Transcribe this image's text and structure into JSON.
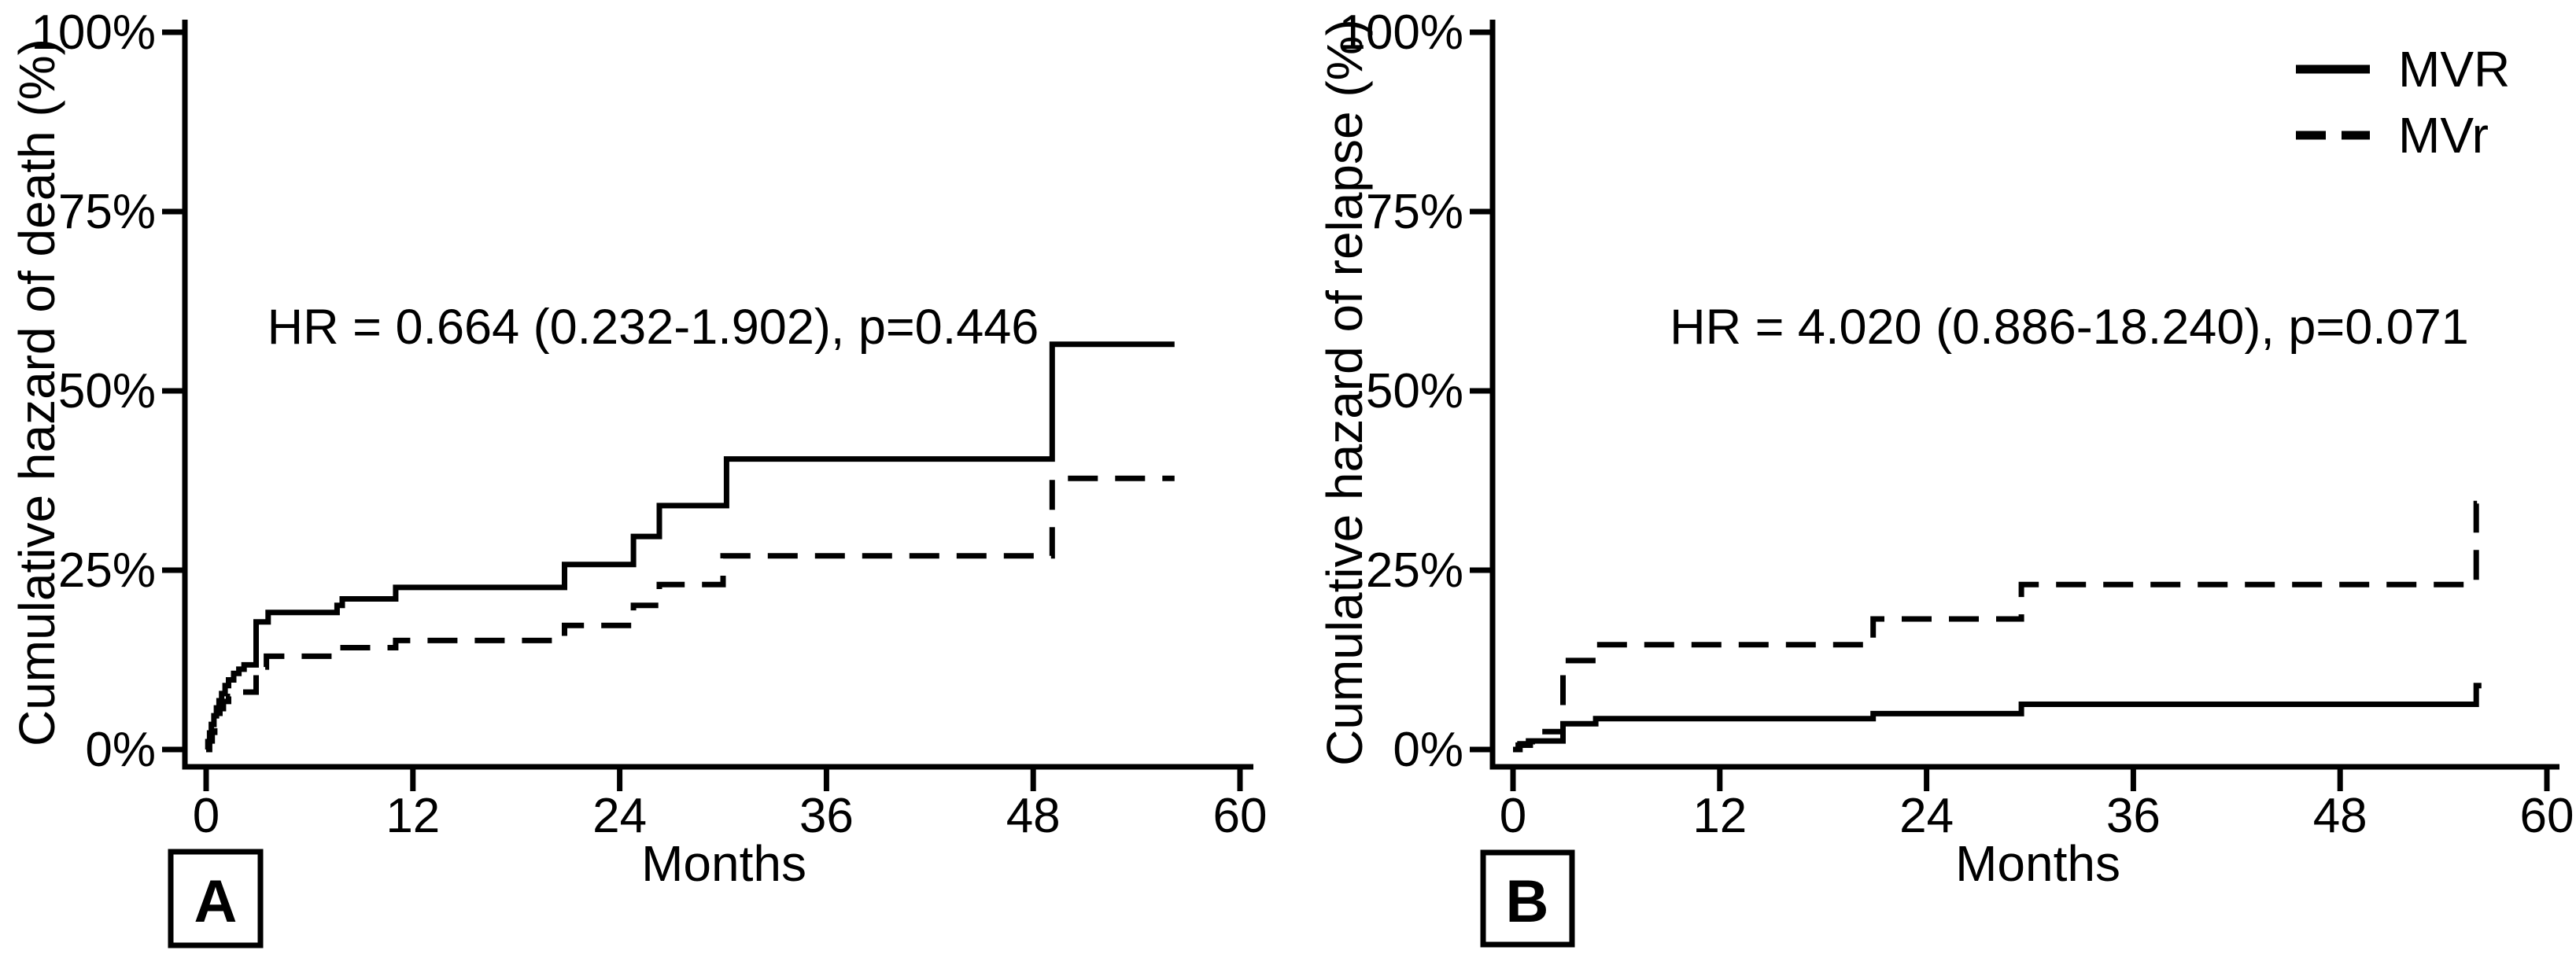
{
  "figure": {
    "background": "#ffffff",
    "ink": "#000000",
    "description": "Two-panel cumulative hazard step plot comparing MVR (solid) vs MVr (dashed)"
  },
  "legend": {
    "position": "top-right",
    "items": [
      {
        "label": "MVR",
        "line": "solid"
      },
      {
        "label": "MVr",
        "line": "dashed"
      }
    ]
  },
  "chart_data": [
    {
      "type": "line",
      "step": true,
      "panel_label": "A",
      "title": "",
      "xlabel": "Months",
      "ylabel": "Cumulative hazard of death (%)",
      "annotation": "HR = 0.664 (0.232-1.902), p=0.446",
      "xlim": [
        0,
        60
      ],
      "ylim": [
        0,
        100
      ],
      "x_ticks": [
        0,
        12,
        24,
        36,
        48,
        60
      ],
      "y_ticks": [
        0,
        25,
        50,
        75,
        100
      ],
      "y_tick_suffix": "%",
      "grid": false,
      "end_month": 56.2,
      "series": [
        {
          "name": "MVR",
          "line": "solid",
          "points": [
            [
              0,
              0
            ],
            [
              0.1,
              1.1
            ],
            [
              0.2,
              2.3
            ],
            [
              0.3,
              3.5
            ],
            [
              0.45,
              4.7
            ],
            [
              0.6,
              5.8
            ],
            [
              0.75,
              6.8
            ],
            [
              0.9,
              7.8
            ],
            [
              1.1,
              8.9
            ],
            [
              1.3,
              9.7
            ],
            [
              1.6,
              10.6
            ],
            [
              1.9,
              11.2
            ],
            [
              2.2,
              11.8
            ],
            [
              2.9,
              17.8
            ],
            [
              3.6,
              19.1
            ],
            [
              7.6,
              20.1
            ],
            [
              7.9,
              21.0
            ],
            [
              11.0,
              22.6
            ],
            [
              20.8,
              25.8
            ],
            [
              24.8,
              29.7
            ],
            [
              26.3,
              34.0
            ],
            [
              30.2,
              40.5
            ],
            [
              49.1,
              56.5
            ]
          ]
        },
        {
          "name": "MVr",
          "line": "dashed",
          "points": [
            [
              0,
              0
            ],
            [
              0.2,
              1.2
            ],
            [
              0.35,
              2.4
            ],
            [
              0.5,
              3.4
            ],
            [
              0.65,
              4.6
            ],
            [
              0.8,
              5.7
            ],
            [
              1.0,
              6.7
            ],
            [
              1.3,
              7.4
            ],
            [
              1.6,
              8.0
            ],
            [
              2.9,
              11.5
            ],
            [
              3.5,
              13.0
            ],
            [
              7.6,
              14.2
            ],
            [
              11.0,
              15.2
            ],
            [
              20.8,
              17.3
            ],
            [
              24.8,
              20.1
            ],
            [
              26.3,
              23.0
            ],
            [
              30.0,
              27.0
            ],
            [
              49.1,
              37.8
            ]
          ]
        }
      ]
    },
    {
      "type": "line",
      "step": true,
      "panel_label": "B",
      "title": "",
      "xlabel": "Months",
      "ylabel": "Cumulative hazard of relapse (%)",
      "annotation": "HR = 4.020 (0.886-18.240), p=0.071",
      "xlim": [
        0,
        60
      ],
      "ylim": [
        0,
        100
      ],
      "x_ticks": [
        0,
        12,
        24,
        36,
        48,
        60
      ],
      "y_ticks": [
        0,
        25,
        50,
        75,
        100
      ],
      "y_tick_suffix": "%",
      "grid": false,
      "end_month": 56.2,
      "series": [
        {
          "name": "MVR",
          "line": "solid",
          "points": [
            [
              0,
              0
            ],
            [
              0.4,
              0.8
            ],
            [
              0.9,
              1.2
            ],
            [
              2.9,
              3.6
            ],
            [
              4.8,
              4.3
            ],
            [
              20.9,
              5.0
            ],
            [
              29.5,
              6.3
            ],
            [
              55.9,
              8.9
            ]
          ]
        },
        {
          "name": "MVr",
          "line": "dashed",
          "points": [
            [
              0,
              0
            ],
            [
              0.3,
              0.6
            ],
            [
              1.0,
              1.1
            ],
            [
              1.7,
              2.5
            ],
            [
              2.9,
              12.4
            ],
            [
              4.8,
              14.6
            ],
            [
              20.9,
              18.2
            ],
            [
              29.5,
              23.0
            ],
            [
              55.9,
              34.3
            ]
          ]
        }
      ]
    }
  ]
}
